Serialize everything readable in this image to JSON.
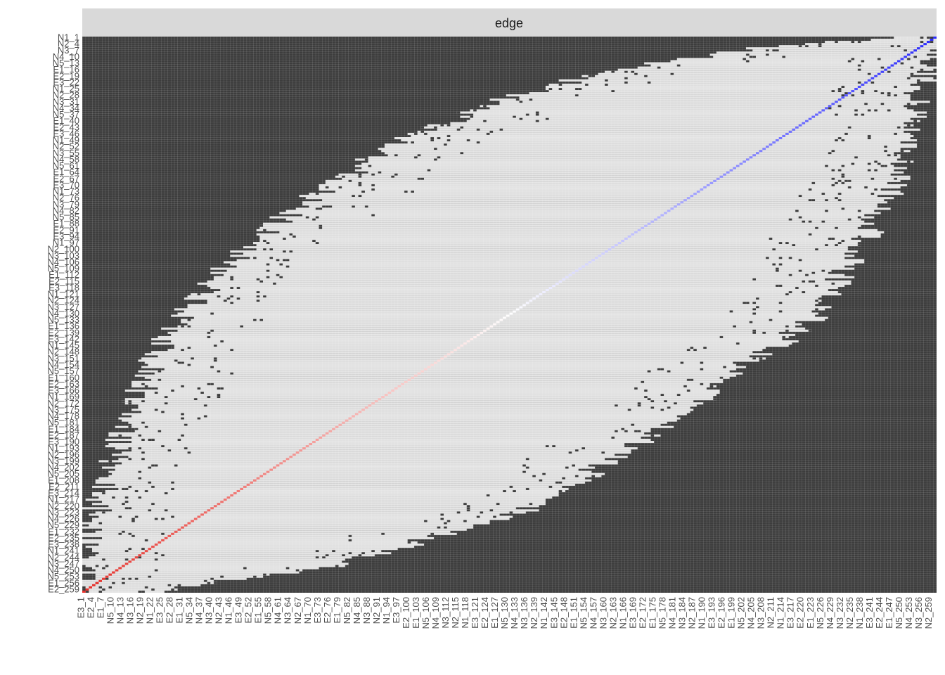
{
  "chart_data": {
    "type": "heatmap",
    "facet_label": "edge",
    "n_rows": 260,
    "n_cols": 260,
    "y_tick_labels": [
      "N1",
      "N2",
      "N3",
      "N4",
      "N5",
      "E1",
      "E2",
      "E3"
    ],
    "x_tick_labels": [
      "E3",
      "E2",
      "E1",
      "N5",
      "N4",
      "N3",
      "N2",
      "N1"
    ],
    "presence_band": {
      "description_free_boundaries": true,
      "upper_edge_top_row_fraction": [
        [
          0.0,
          0.08
        ],
        [
          0.05,
          0.3
        ],
        [
          0.1,
          0.41
        ],
        [
          0.15,
          0.52
        ],
        [
          0.2,
          0.58
        ],
        [
          0.3,
          0.68
        ],
        [
          0.4,
          0.77
        ],
        [
          0.5,
          0.86
        ],
        [
          0.6,
          0.9
        ],
        [
          0.7,
          0.94
        ],
        [
          0.8,
          0.96
        ],
        [
          0.9,
          0.98
        ],
        [
          1.0,
          1.0
        ]
      ],
      "lower_edge_top_row_fraction": [
        [
          0.0,
          0.0
        ],
        [
          0.1,
          0.01
        ],
        [
          0.2,
          0.03
        ],
        [
          0.3,
          0.05
        ],
        [
          0.4,
          0.08
        ],
        [
          0.5,
          0.12
        ],
        [
          0.6,
          0.18
        ],
        [
          0.7,
          0.26
        ],
        [
          0.8,
          0.36
        ],
        [
          0.88,
          0.48
        ],
        [
          0.94,
          0.62
        ],
        [
          0.98,
          0.8
        ],
        [
          1.0,
          0.96
        ]
      ]
    },
    "diagonal_scale": {
      "low": "#e8302a",
      "mid": "#ffffff",
      "high": "#2a2aff"
    },
    "colors": {
      "absent_cell": "#3d3d3d",
      "present_cell": "#e3e3e3",
      "grid_line": "#ffffff",
      "strip_background": "#d9d9d9"
    }
  }
}
